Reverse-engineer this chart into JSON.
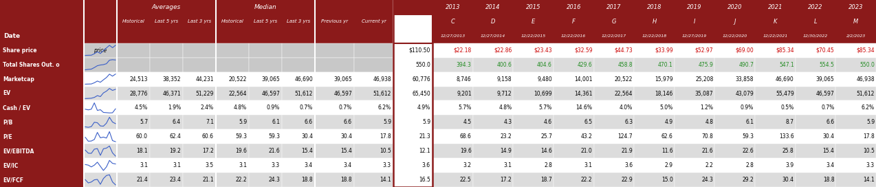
{
  "header_bg": "#8B1A1A",
  "row_bg": [
    "#FFFFFF",
    "#DCDCDC"
  ],
  "gray_bg": "#C8C8C8",
  "spark_color": "#3A5FC8",
  "red_text": "#CC0000",
  "green_text": "#228B22",
  "years": [
    "2013",
    "2014",
    "2015",
    "2016",
    "2017",
    "2018",
    "2019",
    "2020",
    "2021",
    "2022",
    "2023"
  ],
  "year_letters": [
    "C",
    "D",
    "E",
    "F",
    "G",
    "H",
    "I",
    "J",
    "K",
    "L",
    "M"
  ],
  "year_dates": [
    "12/27/2013",
    "12/27/2014",
    "12/22/2015",
    "12/22/2016",
    "12/22/2017",
    "12/22/2018",
    "12/27/2019",
    "12/22/2020",
    "12/22/2021",
    "12/30/2022",
    "2/2/2023"
  ],
  "rows": [
    {
      "label": "Share price",
      "sublabel": "price",
      "is_gray": true,
      "avg": [
        "",
        "",
        ""
      ],
      "med": [
        "",
        "",
        ""
      ],
      "prev": "",
      "curr": "",
      "target": "$110.50",
      "yearly": [
        "$22.18",
        "$22.86",
        "$23.43",
        "$32.59",
        "$44.73",
        "$33.99",
        "$52.97",
        "$69.00",
        "$85.34",
        "$70.45",
        "$85.34"
      ],
      "ycolor": "red",
      "spark": [
        22.18,
        22.86,
        23.43,
        32.59,
        44.73,
        33.99,
        52.97,
        69.0,
        85.34,
        70.45,
        85.34
      ]
    },
    {
      "label": "Total Shares Out. o",
      "sublabel": "",
      "is_gray": true,
      "avg": [
        "",
        "",
        ""
      ],
      "med": [
        "",
        "",
        ""
      ],
      "prev": "",
      "curr": "",
      "target": "550.0",
      "yearly": [
        "394.3",
        "400.6",
        "404.6",
        "429.6",
        "458.8",
        "470.1",
        "475.9",
        "490.7",
        "547.1",
        "554.5",
        "550.0"
      ],
      "ycolor": "green",
      "spark": [
        394.3,
        400.6,
        404.6,
        429.6,
        458.8,
        470.1,
        475.9,
        490.7,
        547.1,
        554.5,
        550.0
      ]
    },
    {
      "label": "Marketcap",
      "sublabel": "",
      "is_gray": false,
      "avg": [
        "24,513",
        "38,352",
        "44,231"
      ],
      "med": [
        "20,522",
        "39,065",
        "46,690"
      ],
      "prev": "39,065",
      "curr": "46,938",
      "target": "60,776",
      "yearly": [
        "8,746",
        "9,158",
        "9,480",
        "14,001",
        "20,522",
        "15,979",
        "25,208",
        "33,858",
        "46,690",
        "39,065",
        "46,938"
      ],
      "ycolor": "black",
      "spark": [
        8746,
        9158,
        9480,
        14001,
        20522,
        15979,
        25208,
        33858,
        46690,
        39065,
        46938
      ]
    },
    {
      "label": "EV",
      "sublabel": "",
      "is_gray": false,
      "avg": [
        "28,776",
        "46,371",
        "51,229"
      ],
      "med": [
        "22,564",
        "46,597",
        "51,612"
      ],
      "prev": "46,597",
      "curr": "51,612",
      "target": "65,450",
      "yearly": [
        "9,201",
        "9,712",
        "10,699",
        "14,361",
        "22,564",
        "18,146",
        "35,087",
        "43,079",
        "55,479",
        "46,597",
        "51,612"
      ],
      "ycolor": "black",
      "spark": [
        9201,
        9712,
        10699,
        14361,
        22564,
        18146,
        35087,
        43079,
        55479,
        46597,
        51612
      ]
    },
    {
      "label": "Cash / EV",
      "sublabel": "",
      "is_gray": false,
      "avg": [
        "4.5%",
        "1.9%",
        "2.4%"
      ],
      "med": [
        "4.8%",
        "0.9%",
        "0.7%"
      ],
      "prev": "0.7%",
      "curr": "6.2%",
      "target": "4.9%",
      "yearly": [
        "5.7%",
        "4.8%",
        "5.7%",
        "14.6%",
        "4.0%",
        "5.0%",
        "1.2%",
        "0.9%",
        "0.5%",
        "0.7%",
        "6.2%"
      ],
      "ycolor": "black",
      "spark": [
        5.7,
        4.8,
        5.7,
        14.6,
        4.0,
        5.0,
        1.2,
        0.9,
        0.5,
        0.7,
        6.2
      ]
    },
    {
      "label": "P/B",
      "sublabel": "",
      "is_gray": false,
      "avg": [
        "5.7",
        "6.4",
        "7.1"
      ],
      "med": [
        "5.9",
        "6.1",
        "6.6"
      ],
      "prev": "6.6",
      "curr": "5.9",
      "target": "5.9",
      "yearly": [
        "4.5",
        "4.3",
        "4.6",
        "6.5",
        "6.3",
        "4.9",
        "4.8",
        "6.1",
        "8.7",
        "6.6",
        "5.9"
      ],
      "ycolor": "black",
      "spark": [
        4.5,
        4.3,
        4.6,
        6.5,
        6.3,
        4.9,
        4.8,
        6.1,
        8.7,
        6.6,
        5.9
      ]
    },
    {
      "label": "P/E",
      "sublabel": "",
      "is_gray": false,
      "avg": [
        "60.0",
        "62.4",
        "60.6"
      ],
      "med": [
        "59.3",
        "59.3",
        "30.4"
      ],
      "prev": "30.4",
      "curr": "17.8",
      "target": "21.3",
      "yearly": [
        "68.6",
        "23.2",
        "25.7",
        "43.2",
        "124.7",
        "62.6",
        "70.8",
        "59.3",
        "133.6",
        "30.4",
        "17.8"
      ],
      "ycolor": "black",
      "spark": [
        68.6,
        23.2,
        25.7,
        43.2,
        124.7,
        62.6,
        70.8,
        59.3,
        133.6,
        30.4,
        17.8
      ]
    },
    {
      "label": "EV/EBITDA",
      "sublabel": "",
      "is_gray": false,
      "avg": [
        "18.1",
        "19.2",
        "17.2"
      ],
      "med": [
        "19.6",
        "21.6",
        "15.4"
      ],
      "prev": "15.4",
      "curr": "10.5",
      "target": "12.1",
      "yearly": [
        "19.6",
        "14.9",
        "14.6",
        "21.0",
        "21.9",
        "11.6",
        "21.6",
        "22.6",
        "25.8",
        "15.4",
        "10.5"
      ],
      "ycolor": "black",
      "spark": [
        19.6,
        14.9,
        14.6,
        21.0,
        21.9,
        11.6,
        21.6,
        22.6,
        25.8,
        15.4,
        10.5
      ]
    },
    {
      "label": "EV/IC",
      "sublabel": "",
      "is_gray": false,
      "avg": [
        "3.1",
        "3.1",
        "3.5"
      ],
      "med": [
        "3.1",
        "3.3",
        "3.4"
      ],
      "prev": "3.4",
      "curr": "3.3",
      "target": "3.6",
      "yearly": [
        "3.2",
        "3.1",
        "2.8",
        "3.1",
        "3.6",
        "2.9",
        "2.2",
        "2.8",
        "3.9",
        "3.4",
        "3.3"
      ],
      "ycolor": "black",
      "spark": [
        3.2,
        3.1,
        2.8,
        3.1,
        3.6,
        2.9,
        2.2,
        2.8,
        3.9,
        3.4,
        3.3
      ]
    },
    {
      "label": "EV/FCF",
      "sublabel": "",
      "is_gray": false,
      "avg": [
        "21.4",
        "23.4",
        "21.1"
      ],
      "med": [
        "22.2",
        "24.3",
        "18.8"
      ],
      "prev": "18.8",
      "curr": "14.1",
      "target": "16.5",
      "yearly": [
        "22.5",
        "17.2",
        "18.7",
        "22.2",
        "22.9",
        "15.0",
        "24.3",
        "29.2",
        "30.4",
        "18.8",
        "14.1"
      ],
      "ycolor": "black",
      "spark": [
        22.5,
        17.2,
        18.7,
        22.2,
        22.9,
        15.0,
        24.3,
        29.2,
        30.4,
        18.8,
        14.1
      ]
    }
  ]
}
